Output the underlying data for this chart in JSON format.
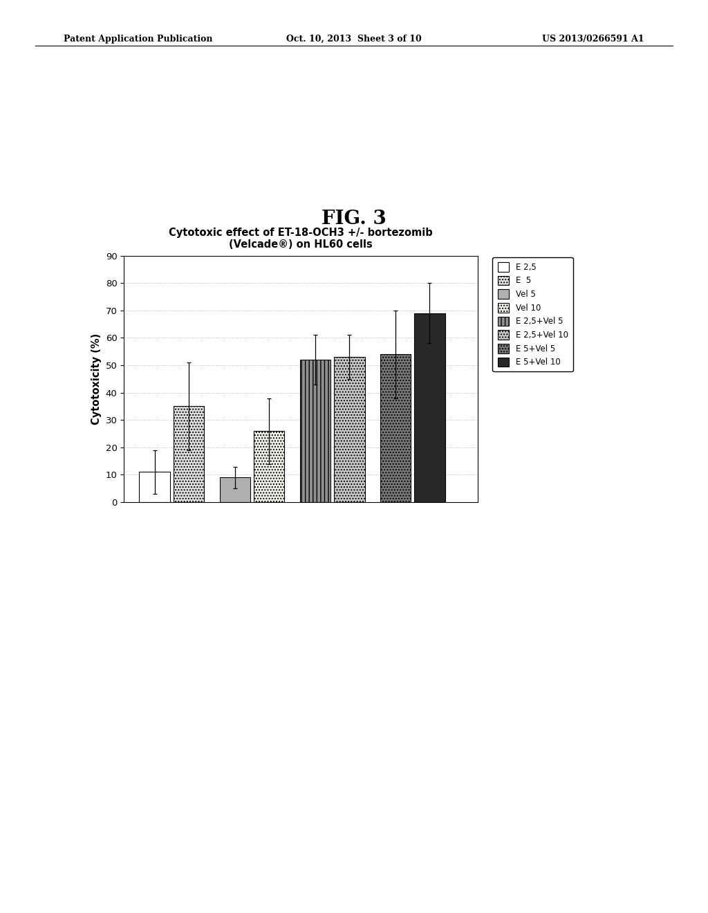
{
  "title_line1": "Cytotoxic effect of ET-18-OCH3 +/- bortezomib",
  "title_line2": "(Velcade®) on HL60 cells",
  "ylabel": "Cytotoxicity (%)",
  "fig_label": "FIG. 3",
  "header_left": "Patent Application Publication",
  "header_mid": "Oct. 10, 2013  Sheet 3 of 10",
  "header_right": "US 2013/0266591 A1",
  "ylim": [
    0,
    90
  ],
  "yticks": [
    0,
    10,
    20,
    30,
    40,
    50,
    60,
    70,
    80,
    90
  ],
  "bar_values": [
    11,
    35,
    9,
    26,
    52,
    53,
    54,
    69
  ],
  "bar_errors": [
    8,
    16,
    4,
    12,
    9,
    8,
    16,
    11
  ],
  "legend_labels": [
    "E 2,5",
    "E  5",
    "Vel 5",
    "Vel 10",
    "E 2,5+Vel 5",
    "E 2,5+Vel 10",
    "E 5+Vel 5",
    "E 5+Vel 10"
  ],
  "bar_colors": [
    "#ffffff",
    "#e0e0e0",
    "#b0b0b0",
    "#f0f0e8",
    "#909090",
    "#c8c8c8",
    "#787878",
    "#282828"
  ],
  "bar_hatches": [
    "",
    "....",
    "",
    "....",
    "|||",
    "....",
    "....",
    ""
  ],
  "legend_colors": [
    "#ffffff",
    "#e0e0e0",
    "#b0b0b0",
    "#f0f0e8",
    "#909090",
    "#c8c8c8",
    "#787878",
    "#282828"
  ],
  "legend_hatches": [
    "",
    "....",
    "",
    "....",
    "|||",
    "....",
    "....",
    ""
  ],
  "background_color": "#ffffff"
}
